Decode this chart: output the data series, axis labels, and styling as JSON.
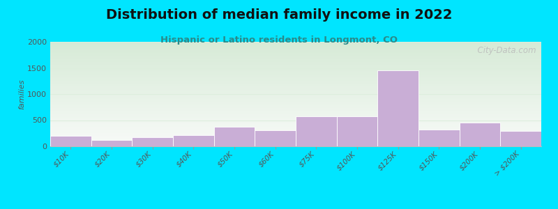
{
  "title": "Distribution of median family income in 2022",
  "subtitle": "Hispanic or Latino residents in Longmont, CO",
  "ylabel": "families",
  "categories": [
    "$10K",
    "$20K",
    "$30K",
    "$40K",
    "$50K",
    "$60K",
    "$75K",
    "$100K",
    "$125K",
    "$150K",
    "$200K",
    "> $200K"
  ],
  "values": [
    200,
    115,
    175,
    210,
    380,
    310,
    570,
    570,
    1455,
    325,
    455,
    295
  ],
  "bar_color": "#c9aed6",
  "background_outer": "#00e5ff",
  "plot_bg_top": "#d6ead6",
  "plot_bg_bottom": "#f8faf8",
  "grid_color": "#ddeedd",
  "title_color": "#111111",
  "subtitle_color": "#2a8a8a",
  "ylabel_color": "#555555",
  "tick_color": "#555555",
  "ylim": [
    0,
    2000
  ],
  "yticks": [
    0,
    500,
    1000,
    1500,
    2000
  ],
  "watermark": "City-Data.com",
  "title_fontsize": 14,
  "subtitle_fontsize": 9.5,
  "ylabel_fontsize": 8
}
